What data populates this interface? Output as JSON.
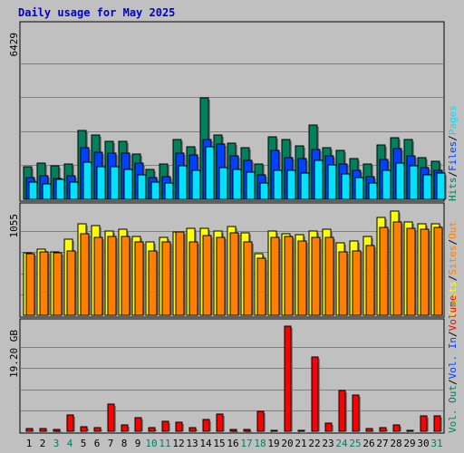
{
  "title": "Daily usage for May 2025",
  "colors": {
    "background": "#c0c0c0",
    "frame": "#000000",
    "title_text": "#0000cc",
    "hits": "#00805c",
    "files": "#0040ff",
    "pages": "#00e0ff",
    "visits": "#ffff00",
    "sites": "#ff8000",
    "volume": "#ff0000",
    "weekend_label": "#00805c",
    "weekday_label": "#000000"
  },
  "chart_data": [
    {
      "type": "bar",
      "name": "hits-files-pages",
      "title": "Daily usage for May 2025",
      "max_label": "6429",
      "ylim": [
        0,
        6429
      ],
      "grid": true,
      "right_labels": [
        {
          "text": "Hits",
          "color": "#00805c"
        },
        {
          "text": "Files",
          "color": "#0040ff"
        },
        {
          "text": "Pages",
          "color": "#00e0ff"
        }
      ],
      "categories": [
        "1",
        "2",
        "3",
        "4",
        "5",
        "6",
        "7",
        "8",
        "9",
        "10",
        "11",
        "12",
        "13",
        "14",
        "15",
        "16",
        "17",
        "18",
        "19",
        "20",
        "21",
        "22",
        "23",
        "24",
        "25",
        "26",
        "27",
        "28",
        "29",
        "30",
        "31"
      ],
      "series": [
        {
          "name": "Hits",
          "color": "#00805c",
          "values": [
            1240,
            1380,
            1260,
            1320,
            2590,
            2420,
            2190,
            2190,
            1710,
            1140,
            1320,
            2250,
            1980,
            3840,
            2440,
            2120,
            1960,
            1320,
            2370,
            2260,
            2020,
            2790,
            1960,
            1850,
            1530,
            1320,
            2060,
            2340,
            2250,
            1580,
            1420
          ]
        },
        {
          "name": "Files",
          "color": "#0040ff",
          "values": [
            830,
            900,
            770,
            880,
            1960,
            1790,
            1740,
            1750,
            1380,
            820,
            860,
            1730,
            1670,
            2240,
            2100,
            1640,
            1460,
            940,
            1850,
            1590,
            1530,
            1880,
            1650,
            1350,
            1110,
            850,
            1520,
            1910,
            1650,
            1210,
            1110
          ]
        },
        {
          "name": "Pages",
          "color": "#00e0ff",
          "values": [
            650,
            580,
            760,
            660,
            1400,
            1240,
            1220,
            1120,
            910,
            650,
            630,
            1270,
            1100,
            2000,
            1190,
            1130,
            1020,
            620,
            1110,
            1080,
            1000,
            1470,
            1300,
            950,
            830,
            620,
            1080,
            1380,
            1250,
            920,
            980
          ]
        }
      ]
    },
    {
      "type": "bar",
      "name": "visits-sites",
      "max_label": "1055",
      "ylim": [
        0,
        1055
      ],
      "grid": true,
      "right_labels": [
        {
          "text": "Visits",
          "color": "#ffff00"
        },
        {
          "text": "Sites",
          "color": "#ff8000"
        },
        {
          "text": "Out",
          "color": "#ff8000"
        }
      ],
      "categories": [
        "1",
        "2",
        "3",
        "4",
        "5",
        "6",
        "7",
        "8",
        "9",
        "10",
        "11",
        "12",
        "13",
        "14",
        "15",
        "16",
        "17",
        "18",
        "19",
        "20",
        "21",
        "22",
        "23",
        "24",
        "25",
        "26",
        "27",
        "28",
        "29",
        "30",
        "31"
      ],
      "series": [
        {
          "name": "Visits",
          "color": "#ffff00",
          "values": [
            630,
            660,
            640,
            760,
            920,
            900,
            850,
            860,
            790,
            740,
            780,
            840,
            870,
            870,
            850,
            890,
            830,
            620,
            850,
            820,
            810,
            850,
            860,
            730,
            750,
            790,
            980,
            1050,
            940,
            920,
            920
          ]
        },
        {
          "name": "Sites",
          "color": "#ff8000",
          "values": [
            620,
            640,
            630,
            650,
            820,
            780,
            790,
            790,
            740,
            650,
            740,
            840,
            740,
            800,
            780,
            830,
            740,
            570,
            780,
            790,
            750,
            780,
            780,
            640,
            650,
            700,
            880,
            940,
            870,
            860,
            880
          ]
        }
      ]
    },
    {
      "type": "bar",
      "name": "volume",
      "max_label": "19.20 GB",
      "ylim": [
        0,
        19.2
      ],
      "grid": true,
      "right_labels": [
        {
          "text": "Vol. Out",
          "color": "#00805c"
        },
        {
          "text": "Vol. In",
          "color": "#0040ff"
        },
        {
          "text": "Volume",
          "color": "#ff0000"
        }
      ],
      "categories": [
        "1",
        "2",
        "3",
        "4",
        "5",
        "6",
        "7",
        "8",
        "9",
        "10",
        "11",
        "12",
        "13",
        "14",
        "15",
        "16",
        "17",
        "18",
        "19",
        "20",
        "21",
        "22",
        "23",
        "24",
        "25",
        "26",
        "27",
        "28",
        "29",
        "30",
        "31"
      ],
      "series": [
        {
          "name": "Volume",
          "color": "#ff0000",
          "values": [
            0.5,
            0.5,
            0.3,
            3.0,
            0.9,
            0.6,
            5.0,
            1.1,
            2.5,
            0.7,
            1.8,
            1.7,
            0.6,
            2.1,
            3.1,
            0.4,
            0.3,
            3.6,
            0.2,
            19.2,
            0.2,
            13.5,
            1.5,
            7.5,
            6.7,
            0.5,
            0.6,
            1.2,
            0.2,
            2.8,
            2.8
          ]
        }
      ]
    }
  ],
  "x_axis": {
    "labels": [
      "1",
      "2",
      "3",
      "4",
      "5",
      "6",
      "7",
      "8",
      "9",
      "10",
      "11",
      "12",
      "13",
      "14",
      "15",
      "16",
      "17",
      "18",
      "19",
      "20",
      "21",
      "22",
      "23",
      "24",
      "25",
      "26",
      "27",
      "28",
      "29",
      "30",
      "31"
    ],
    "weekend_days": [
      "3",
      "4",
      "10",
      "11",
      "17",
      "18",
      "24",
      "25",
      "31"
    ]
  }
}
